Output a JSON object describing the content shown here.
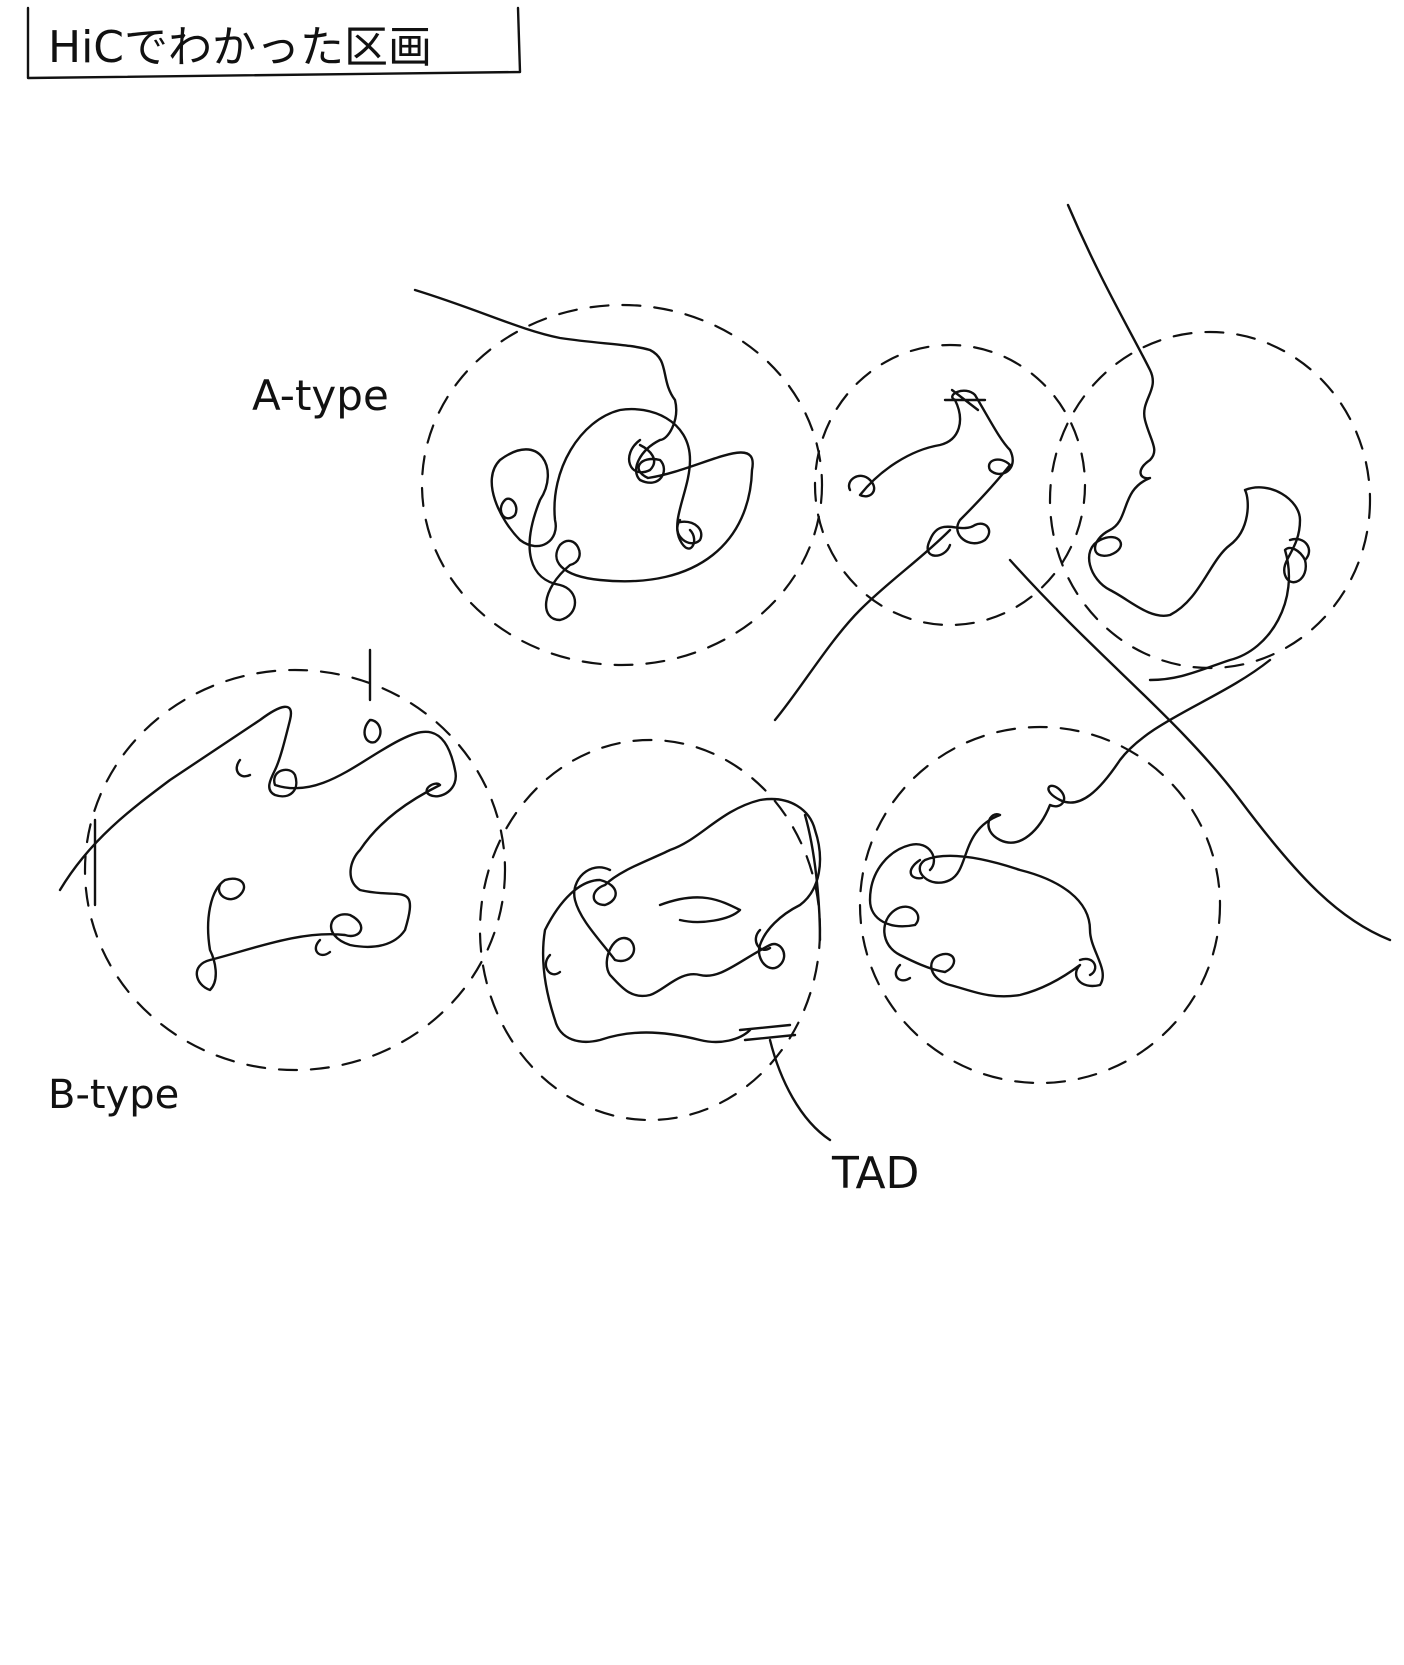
{
  "title": "HiCでわかった区画",
  "labels": {
    "a_type": "A-type",
    "b_type": "B-type",
    "tad": "TAD"
  },
  "colors": {
    "ink": "#111111",
    "background": "#ffffff"
  }
}
